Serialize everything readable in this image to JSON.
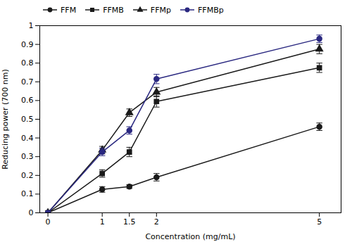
{
  "chart_data": {
    "type": "line",
    "xlabel": "Concentration (mg/mL)",
    "ylabel": "Reducing power (700 nm)",
    "x": [
      0,
      1,
      1.5,
      2,
      5
    ],
    "series": [
      {
        "name": "FFM",
        "color": "#1a1a1a",
        "marker": "circle",
        "values": [
          0.0,
          0.125,
          0.14,
          0.19,
          0.46
        ],
        "yerr": [
          0.0,
          0.015,
          0.01,
          0.02,
          0.02
        ]
      },
      {
        "name": "FFMB",
        "color": "#1a1a1a",
        "marker": "square",
        "values": [
          0.0,
          0.21,
          0.325,
          0.595,
          0.775
        ],
        "yerr": [
          0.0,
          0.02,
          0.025,
          0.03,
          0.025
        ]
      },
      {
        "name": "FFMp",
        "color": "#1a1a1a",
        "marker": "triangle",
        "values": [
          0.0,
          0.335,
          0.535,
          0.645,
          0.875
        ],
        "yerr": [
          0.0,
          0.02,
          0.02,
          0.025,
          0.025
        ]
      },
      {
        "name": "FFMBp",
        "color": "#2a2880",
        "marker": "circle",
        "values": [
          0.0,
          0.325,
          0.44,
          0.715,
          0.93
        ],
        "yerr": [
          0.0,
          0.02,
          0.02,
          0.025,
          0.02
        ]
      }
    ],
    "xlim": [
      -0.15,
      5.4
    ],
    "xticks": [
      0,
      1,
      1.5,
      2,
      5
    ],
    "ylim": [
      0,
      1.0
    ],
    "yticks": [
      0,
      0.1,
      0.2,
      0.3,
      0.4,
      0.5,
      0.6,
      0.7,
      0.8,
      0.9,
      1.0
    ],
    "legend": "upper left",
    "grid": false
  }
}
